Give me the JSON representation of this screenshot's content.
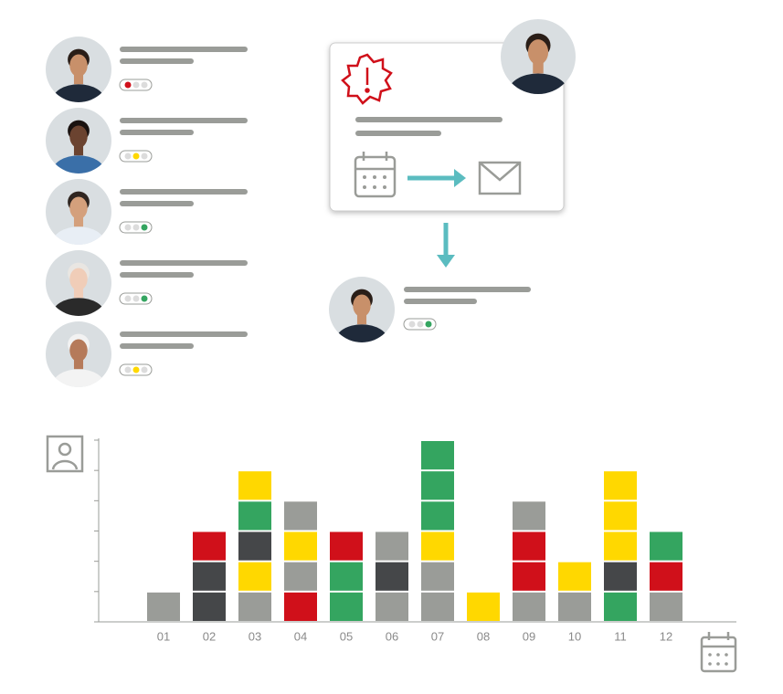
{
  "people_status": [
    "red",
    "yellow",
    "green",
    "green",
    "yellow"
  ],
  "result_status": "green",
  "chart_data": {
    "type": "stacked-units",
    "categories": [
      "01",
      "02",
      "03",
      "04",
      "05",
      "06",
      "07",
      "08",
      "09",
      "10",
      "11",
      "12"
    ],
    "stacks": [
      [
        "#9a9c98"
      ],
      [
        "#454749",
        "#454749",
        "#d0101a"
      ],
      [
        "#9a9c98",
        "#ffd800",
        "#454749",
        "#34a560",
        "#ffd800"
      ],
      [
        "#d0101a",
        "#9a9c98",
        "#ffd800",
        "#9a9c98"
      ],
      [
        "#34a560",
        "#34a560",
        "#d0101a"
      ],
      [
        "#9a9c98",
        "#454749",
        "#9a9c98"
      ],
      [
        "#9a9c98",
        "#9a9c98",
        "#ffd800",
        "#34a560",
        "#34a560",
        "#34a560"
      ],
      [
        "#ffd800"
      ],
      [
        "#9a9c98",
        "#d0101a",
        "#d0101a",
        "#9a9c98"
      ],
      [
        "#9a9c98",
        "#ffd800"
      ],
      [
        "#34a560",
        "#454749",
        "#ffd800",
        "#ffd800",
        "#ffd800"
      ],
      [
        "#9a9c98",
        "#d0101a",
        "#34a560"
      ]
    ],
    "ylim": [
      0,
      6
    ],
    "yticks": [
      0,
      1,
      2,
      3,
      4,
      5,
      6
    ]
  }
}
